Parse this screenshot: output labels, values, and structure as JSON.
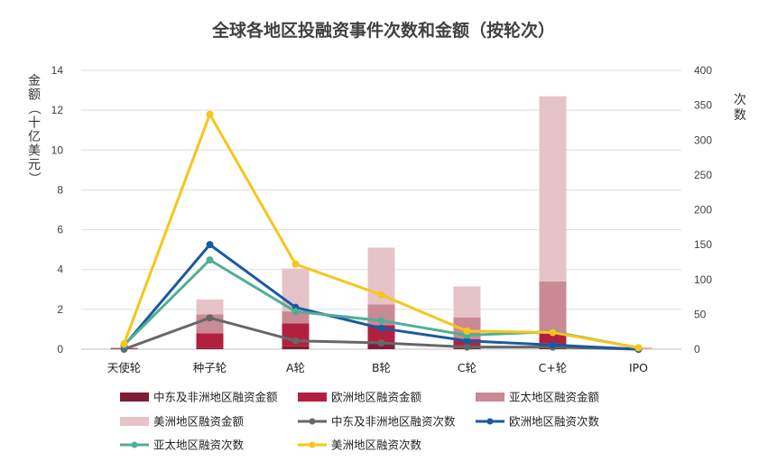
{
  "chart_data": {
    "type": "bar",
    "title": "全球各地区投融资事件次数和金额（按轮次）",
    "ylabel": "金额（十亿美元）",
    "y2label": "次数",
    "ylim": [
      0,
      14
    ],
    "y2lim": [
      0,
      400
    ],
    "yticks": [
      0,
      2,
      4,
      6,
      8,
      10,
      12,
      14
    ],
    "y2ticks": [
      0,
      50,
      100,
      150,
      200,
      250,
      300,
      350,
      400
    ],
    "categories": [
      "天使轮",
      "种子轮",
      "A轮",
      "B轮",
      "C轮",
      "C+轮",
      "IPO"
    ],
    "bar_series": [
      {
        "name": "中东及非洲地区融资金额",
        "color": "#7f1d35",
        "values": [
          0.02,
          0.05,
          0.15,
          0.25,
          0.05,
          0.3,
          0
        ]
      },
      {
        "name": "欧洲地区融资金额",
        "color": "#b3203f",
        "values": [
          0.02,
          0.75,
          1.15,
          0.95,
          0.45,
          0.55,
          0
        ]
      },
      {
        "name": "亚太地区融资金额",
        "color": "#c98a95",
        "values": [
          0.02,
          0.95,
          0.6,
          1.05,
          1.1,
          2.55,
          0.03
        ]
      },
      {
        "name": "美洲地区融资金额",
        "color": "#e5c3c9",
        "values": [
          0.04,
          0.75,
          2.15,
          2.85,
          1.55,
          9.3,
          0.07
        ]
      }
    ],
    "line_series": [
      {
        "name": "中东及非洲地区融资次数",
        "color": "#676767",
        "values": [
          0,
          45,
          12,
          9,
          3,
          3,
          0
        ]
      },
      {
        "name": "欧洲地区融资次数",
        "color": "#1a5aa0",
        "values": [
          5,
          150,
          60,
          30,
          12,
          6,
          0
        ]
      },
      {
        "name": "亚太地区融资次数",
        "color": "#4faf96",
        "values": [
          6,
          128,
          54,
          41,
          20,
          25,
          2
        ]
      },
      {
        "name": "美洲地区融资次数",
        "color": "#f6c619",
        "values": [
          8,
          337,
          122,
          78,
          26,
          24,
          2
        ]
      }
    ],
    "legend": "bottom"
  }
}
